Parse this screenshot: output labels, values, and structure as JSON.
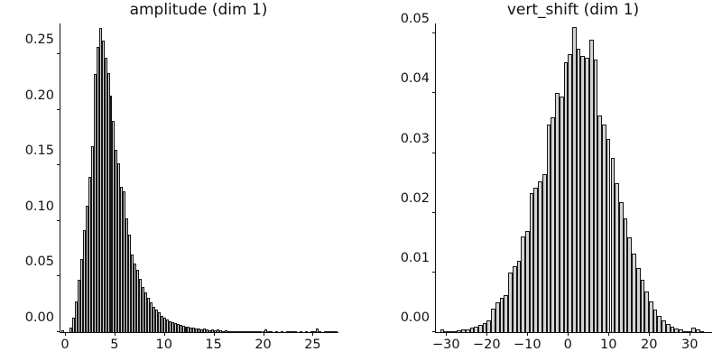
{
  "figure": {
    "background": "#ffffff",
    "text_color": "#111111",
    "bar_fill": "#d4d4d4",
    "bar_edge": "#151515"
  },
  "chart_data": [
    {
      "type": "bar",
      "subtype": "histogram",
      "title": "amplitude (dim 1)",
      "xlabel": "",
      "ylabel": "",
      "grid": false,
      "legend": null,
      "xlim": [
        -0.45,
        27.6
      ],
      "ylim": [
        0,
        0.2777
      ],
      "xticks": {
        "values": [
          0,
          5,
          10,
          15,
          20,
          25
        ],
        "labels": [
          "0",
          "5",
          "10",
          "15",
          "20",
          "25"
        ]
      },
      "yticks": {
        "values": [
          0,
          0.05,
          0.1,
          0.15,
          0.2,
          0.25
        ],
        "labels": [
          "0.00",
          "0.05",
          "0.10",
          "0.15",
          "0.20",
          "0.25"
        ]
      },
      "bin_start": -0.345,
      "bin_width": 0.27,
      "heights": [
        0.0015,
        0,
        0,
        0.004,
        0.013,
        0.028,
        0.047,
        0.066,
        0.092,
        0.114,
        0.14,
        0.167,
        0.232,
        0.257,
        0.274,
        0.262,
        0.247,
        0.233,
        0.213,
        0.19,
        0.164,
        0.152,
        0.131,
        0.127,
        0.102,
        0.088,
        0.07,
        0.062,
        0.056,
        0.048,
        0.041,
        0.036,
        0.031,
        0.027,
        0.023,
        0.02,
        0.0175,
        0.015,
        0.013,
        0.0115,
        0.01,
        0.009,
        0.008,
        0.0075,
        0.0065,
        0.0055,
        0.005,
        0.0048,
        0.004,
        0.0042,
        0.0035,
        0.003,
        0.0028,
        0.0032,
        0.0025,
        0.002,
        0.0022,
        0.0018,
        0.0028,
        0.0015,
        0.0012,
        0.0015,
        0.001,
        0.0012,
        0.0008,
        0.001,
        0.0006,
        0.0005,
        0.0008,
        0.0004,
        0.0003,
        0.0005,
        0.0002,
        0.0003,
        0.0002,
        0.0002,
        0.0028,
        0.0003,
        0.0002,
        0,
        0.0002,
        0,
        0.0002,
        0,
        0.0003,
        0.0008,
        0.001,
        0.0004,
        0,
        0.0002,
        0,
        0.0002,
        0,
        0.0003,
        0.0002,
        0.003,
        0.0003,
        0,
        0.0002,
        0.0008,
        0.0005,
        0.0012,
        0.0006
      ]
    },
    {
      "type": "bar",
      "subtype": "histogram",
      "title": "vert_shift (dim 1)",
      "xlabel": "",
      "ylabel": "",
      "grid": false,
      "legend": null,
      "xlim": [
        -32.5,
        35.5
      ],
      "ylim": [
        0,
        0.0517
      ],
      "xticks": {
        "values": [
          -30,
          -20,
          -10,
          0,
          10,
          20,
          30
        ],
        "labels": [
          "−30",
          "−20",
          "−10",
          "0",
          "10",
          "20",
          "30"
        ]
      },
      "yticks": {
        "values": [
          0,
          0.01,
          0.02,
          0.03,
          0.04,
          0.05
        ],
        "labels": [
          "0.00",
          "0.01",
          "0.02",
          "0.03",
          "0.04",
          "0.05"
        ]
      },
      "bin_start": -31.5,
      "bin_width": 1.05,
      "heights": [
        0.0005,
        0.0001,
        0.0002,
        0.0002,
        0.0003,
        0.0004,
        0.0005,
        0.0007,
        0.0009,
        0.0012,
        0.0015,
        0.0019,
        0.004,
        0.005,
        0.0057,
        0.0062,
        0.01,
        0.011,
        0.012,
        0.0161,
        0.017,
        0.0233,
        0.0242,
        0.0252,
        0.0264,
        0.0347,
        0.036,
        0.04,
        0.0394,
        0.0452,
        0.0465,
        0.0511,
        0.0475,
        0.0462,
        0.0459,
        0.049,
        0.0457,
        0.0363,
        0.0347,
        0.0323,
        0.0292,
        0.025,
        0.0218,
        0.019,
        0.0158,
        0.0132,
        0.0108,
        0.0088,
        0.0068,
        0.0052,
        0.0038,
        0.0027,
        0.0019,
        0.0013,
        0.0009,
        0.0006,
        0.0004,
        0.0002,
        0.0002,
        0.0007,
        0.0004,
        0.0002
      ]
    }
  ]
}
